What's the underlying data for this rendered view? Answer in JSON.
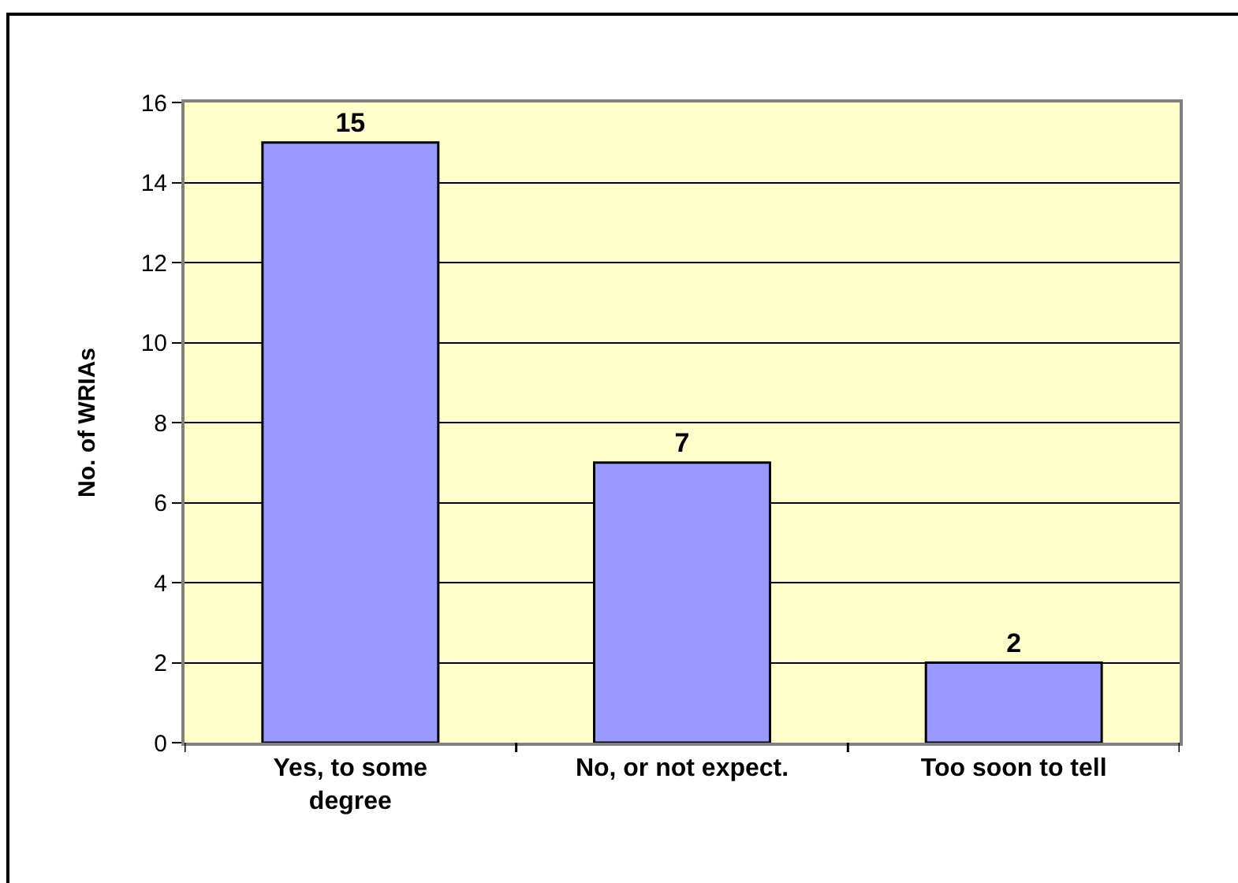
{
  "chart_data": {
    "type": "bar",
    "ylabel": "No. of WRIAs",
    "categories": [
      "Yes, to some degree",
      "No, or not expect.",
      "Too soon to tell"
    ],
    "values": [
      15,
      7,
      2
    ],
    "color": "#9999ff",
    "ylim": [
      0,
      16
    ],
    "yticks": [
      0,
      2,
      4,
      6,
      8,
      10,
      12,
      14,
      16
    ],
    "grid": "y",
    "data_labels": true
  }
}
